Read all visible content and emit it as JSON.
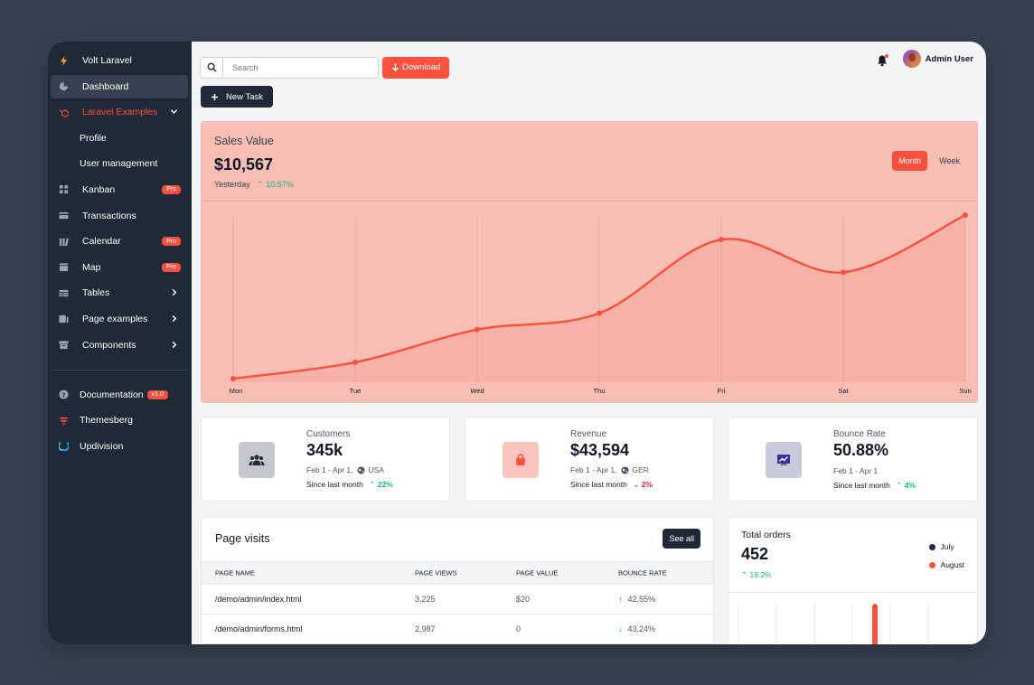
{
  "sidebar": {
    "brand": "Volt Laravel",
    "items": [
      {
        "label": "Dashboard"
      },
      {
        "label": "Laravel Examples"
      },
      {
        "label": "Profile"
      },
      {
        "label": "User management"
      },
      {
        "label": "Kanban",
        "badge": "Pro"
      },
      {
        "label": "Transactions"
      },
      {
        "label": "Calendar",
        "badge": "Pro"
      },
      {
        "label": "Map",
        "badge": "Pro"
      },
      {
        "label": "Tables"
      },
      {
        "label": "Page examples"
      },
      {
        "label": "Components"
      }
    ],
    "footer": [
      {
        "label": "Documentation",
        "badge": "v1.0"
      },
      {
        "label": "Themesberg"
      },
      {
        "label": "Updivision"
      }
    ]
  },
  "topbar": {
    "search_placeholder": "Search",
    "download_label": "Download",
    "user_name": "Admin User"
  },
  "actions": {
    "new_task": "New Task"
  },
  "sales": {
    "title": "Sales Value",
    "value": "$10,567",
    "period_label": "Yesterday",
    "change": "10.57%",
    "toggle": [
      "Month",
      "Week"
    ],
    "accent": "#fb503b"
  },
  "chart_data": {
    "type": "line",
    "categories": [
      "Mon",
      "Tue",
      "Wed",
      "Thu",
      "Fri",
      "Sat",
      "Sun"
    ],
    "values": [
      0,
      10,
      30,
      40,
      85,
      65,
      100
    ],
    "ylim": [
      0,
      100
    ],
    "grid": "vertical",
    "color": "#fb503b"
  },
  "stats": [
    {
      "label": "Customers",
      "value": "345k",
      "range": "Feb 1 - Apr 1,",
      "region": "USA",
      "since": "Since last month",
      "change": "22%",
      "trend": "up"
    },
    {
      "label": "Revenue",
      "value": "$43,594",
      "range": "Feb 1 - Apr 1,",
      "region": "GER",
      "since": "Since last month",
      "change": "2%",
      "trend": "down"
    },
    {
      "label": "Bounce Rate",
      "value": "50.88%",
      "range": "Feb 1 - Apr 1",
      "region": "",
      "since": "Since last month",
      "change": "4%",
      "trend": "up"
    }
  ],
  "page_visits": {
    "title": "Page visits",
    "see_all": "See all",
    "columns": [
      "PAGE NAME",
      "PAGE VIEWS",
      "PAGE VALUE",
      "BOUNCE RATE"
    ],
    "rows": [
      {
        "name": "/demo/admin/index.html",
        "views": "3,225",
        "value": "$20",
        "bounce": "42,55%",
        "trend": "up"
      },
      {
        "name": "/demo/admin/forms.html",
        "views": "2,987",
        "value": "0",
        "bounce": "43,24%",
        "trend": "down"
      }
    ]
  },
  "orders": {
    "title": "Total orders",
    "value": "452",
    "change": "18.2%",
    "legend": [
      {
        "label": "July",
        "color": "#1f2937"
      },
      {
        "label": "August",
        "color": "#fb503b"
      }
    ]
  }
}
